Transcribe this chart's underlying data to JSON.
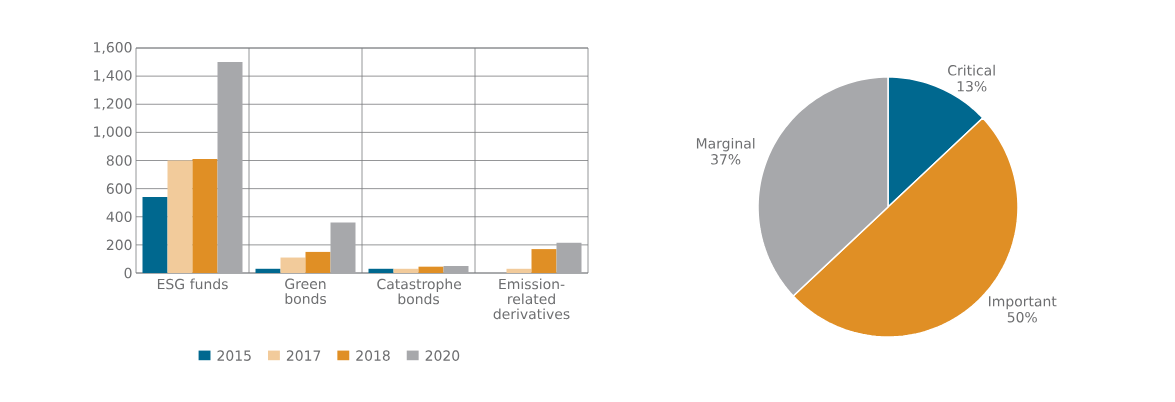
{
  "chart_data": [
    {
      "type": "bar",
      "categories": [
        "ESG funds",
        "Green bonds",
        "Catastrophe bonds",
        "Emission-related derivatives"
      ],
      "series": [
        {
          "name": "2015",
          "color": "#00688f",
          "values": [
            540,
            30,
            30,
            null
          ]
        },
        {
          "name": "2017",
          "color": "#f2cb9b",
          "values": [
            800,
            110,
            30,
            30
          ]
        },
        {
          "name": "2018",
          "color": "#e08f25",
          "values": [
            810,
            150,
            45,
            170
          ]
        },
        {
          "name": "2020",
          "color": "#a7a8ab",
          "values": [
            1500,
            360,
            50,
            215
          ]
        }
      ],
      "ylim": [
        0,
        1600
      ],
      "yticks": [
        0,
        200,
        400,
        600,
        800,
        {
          "value": 1000,
          "label": "1,000"
        },
        {
          "value": 1200,
          "label": "1,200"
        },
        {
          "value": 1400,
          "label": "1,400"
        },
        {
          "value": 1600,
          "label": "1,600"
        }
      ],
      "grid": true,
      "legend": "bottom"
    },
    {
      "type": "pie",
      "categories": [
        "Critical",
        "Important",
        "Marginal"
      ],
      "values": [
        13,
        50,
        37
      ],
      "colors": [
        "#00688f",
        "#e08f25",
        "#a7a8ab"
      ],
      "value_labels": [
        "13%",
        "50%",
        "37%"
      ]
    }
  ]
}
